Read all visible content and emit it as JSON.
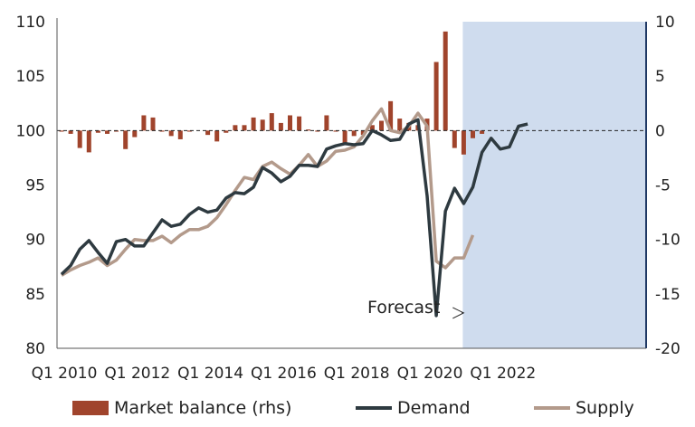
{
  "chart_data": {
    "type": "bar+line",
    "title": "",
    "x_tick_labels": [
      "Q1 2010",
      "Q1 2012",
      "Q1 2014",
      "Q1 2016",
      "Q1 2018",
      "Q1 2020",
      "Q1 2022"
    ],
    "y_left": {
      "min": 80,
      "max": 110,
      "ticks": [
        80,
        85,
        90,
        95,
        100,
        105,
        110
      ]
    },
    "y_right": {
      "min": -20,
      "max": 10,
      "ticks": [
        -20,
        -15,
        -10,
        -5,
        0,
        5,
        10
      ]
    },
    "forecast_region": {
      "from_index": 44,
      "to_index": 52
    },
    "annotation": {
      "text": "Forecast",
      "arrow_to": {
        "quarter_index": 43,
        "y_left": 83
      }
    },
    "quarters": [
      "Q1 2010",
      "Q2 2010",
      "Q3 2010",
      "Q4 2010",
      "Q1 2011",
      "Q2 2011",
      "Q3 2011",
      "Q4 2011",
      "Q1 2012",
      "Q2 2012",
      "Q3 2012",
      "Q4 2012",
      "Q1 2013",
      "Q2 2013",
      "Q3 2013",
      "Q4 2013",
      "Q1 2014",
      "Q2 2014",
      "Q3 2014",
      "Q4 2014",
      "Q1 2015",
      "Q2 2015",
      "Q3 2015",
      "Q4 2015",
      "Q1 2016",
      "Q2 2016",
      "Q3 2016",
      "Q4 2016",
      "Q1 2017",
      "Q2 2017",
      "Q3 2017",
      "Q4 2017",
      "Q1 2018",
      "Q2 2018",
      "Q3 2018",
      "Q4 2018",
      "Q1 2019",
      "Q2 2019",
      "Q3 2019",
      "Q4 2019",
      "Q1 2020",
      "Q2 2020",
      "Q3 2020",
      "Q4 2020",
      "Q1 2021",
      "Q2 2021",
      "Q3 2021",
      "Q4 2021",
      "Q1 2022",
      "Q2 2022",
      "Q3 2022",
      "Q4 2022"
    ],
    "series": [
      {
        "name": "Market balance (rhs)",
        "type": "bar",
        "axis": "right",
        "color": "#a0442c",
        "values": [
          -0.1,
          -0.3,
          -1.6,
          -2.0,
          -0.2,
          -0.3,
          -0.1,
          -1.7,
          -0.6,
          1.4,
          1.2,
          -0.1,
          -0.5,
          -0.8,
          -0.1,
          0,
          -0.4,
          -1.0,
          -0.2,
          0.5,
          0.5,
          1.2,
          1.0,
          1.6,
          0.7,
          1.4,
          1.3,
          0.1,
          -0.1,
          1.4,
          -0.1,
          -1.2,
          -0.5,
          -0.4,
          0.5,
          0.9,
          2.7,
          1.1,
          0.7,
          0.5,
          1.1,
          6.3,
          9.1,
          -1.6,
          -2.2,
          -0.7,
          -0.3,
          null,
          null,
          null,
          null,
          null
        ]
      },
      {
        "name": "Demand",
        "type": "line",
        "axis": "left",
        "color": "#2e3a40",
        "values": [
          86.8,
          87.6,
          89.1,
          89.9,
          88.8,
          87.8,
          89.8,
          90.0,
          89.4,
          89.4,
          90.6,
          91.8,
          91.2,
          91.4,
          92.3,
          92.9,
          92.5,
          92.7,
          93.8,
          94.3,
          94.2,
          94.8,
          96.6,
          96.1,
          95.3,
          95.8,
          96.8,
          96.8,
          96.7,
          98.3,
          98.6,
          98.8,
          98.7,
          98.8,
          100.0,
          99.6,
          99.1,
          99.2,
          100.6,
          101.0,
          94.0,
          83.0,
          92.6,
          94.7,
          93.3,
          94.8,
          98.0,
          99.3,
          98.3,
          98.5,
          100.4,
          100.6
        ]
      },
      {
        "name": "Supply",
        "type": "line",
        "axis": "left",
        "color": "#b39a8b",
        "values": [
          86.7,
          87.2,
          87.6,
          87.9,
          88.3,
          87.6,
          88.1,
          89.1,
          90.0,
          89.9,
          89.9,
          90.3,
          89.7,
          90.4,
          90.9,
          90.9,
          91.2,
          92.0,
          93.2,
          94.5,
          95.7,
          95.5,
          96.7,
          97.1,
          96.5,
          96.0,
          96.8,
          97.8,
          96.7,
          97.2,
          98.1,
          98.2,
          98.5,
          99.5,
          100.9,
          102.0,
          100.0,
          99.8,
          100.4,
          101.6,
          100.4,
          88.0,
          87.4,
          88.3,
          88.3,
          90.4,
          null,
          null,
          null,
          null,
          null,
          null
        ]
      }
    ],
    "legend": [
      "Market balance (rhs)",
      "Demand",
      "Supply"
    ]
  },
  "colors": {
    "forecast_shade": "#cfdcee",
    "forecast_edge": "#1f3864",
    "axis": "#555555"
  }
}
